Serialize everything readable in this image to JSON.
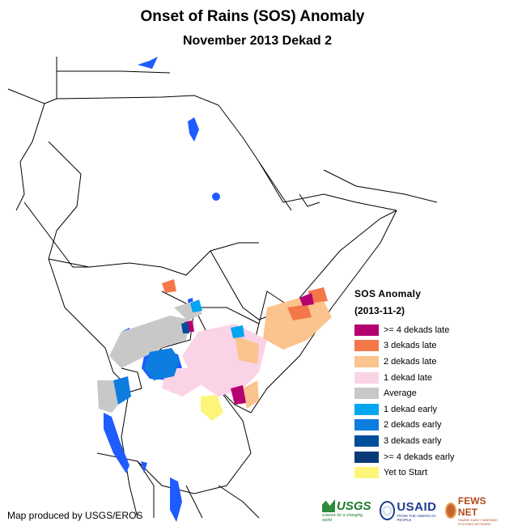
{
  "title": "Onset of Rains (SOS) Anomaly",
  "subtitle": "November 2013 Dekad 2",
  "legend": {
    "title": "SOS Anomaly",
    "date": "(2013-11-2)",
    "items": [
      {
        "label": ">= 4 dekads late",
        "color": "#b5006f"
      },
      {
        "label": "3 dekads late",
        "color": "#f4774a"
      },
      {
        "label": "2 dekads late",
        "color": "#fbc38e"
      },
      {
        "label": "1 dekad late",
        "color": "#fbd3e6"
      },
      {
        "label": "Average",
        "color": "#c8c8c8"
      },
      {
        "label": "1 dekad early",
        "color": "#00a6f0"
      },
      {
        "label": "2 dekads early",
        "color": "#0d7de0"
      },
      {
        "label": "3 dekads early",
        "color": "#004e9a"
      },
      {
        "label": ">= 4 dekads early",
        "color": "#0a3b78"
      },
      {
        "label": "Yet to Start",
        "color": "#fdf57a"
      }
    ]
  },
  "credit": "Map produced by USGS/EROS",
  "logos": {
    "usgs": {
      "name": "USGS",
      "tagline": "science for a changing world"
    },
    "usaid": {
      "name": "USAID",
      "tagline": "FROM THE AMERICAN PEOPLE"
    },
    "fews": {
      "name": "FEWS NET",
      "tagline": "FAMINE EARLY WARNING SYSTEMS NETWORK"
    }
  }
}
